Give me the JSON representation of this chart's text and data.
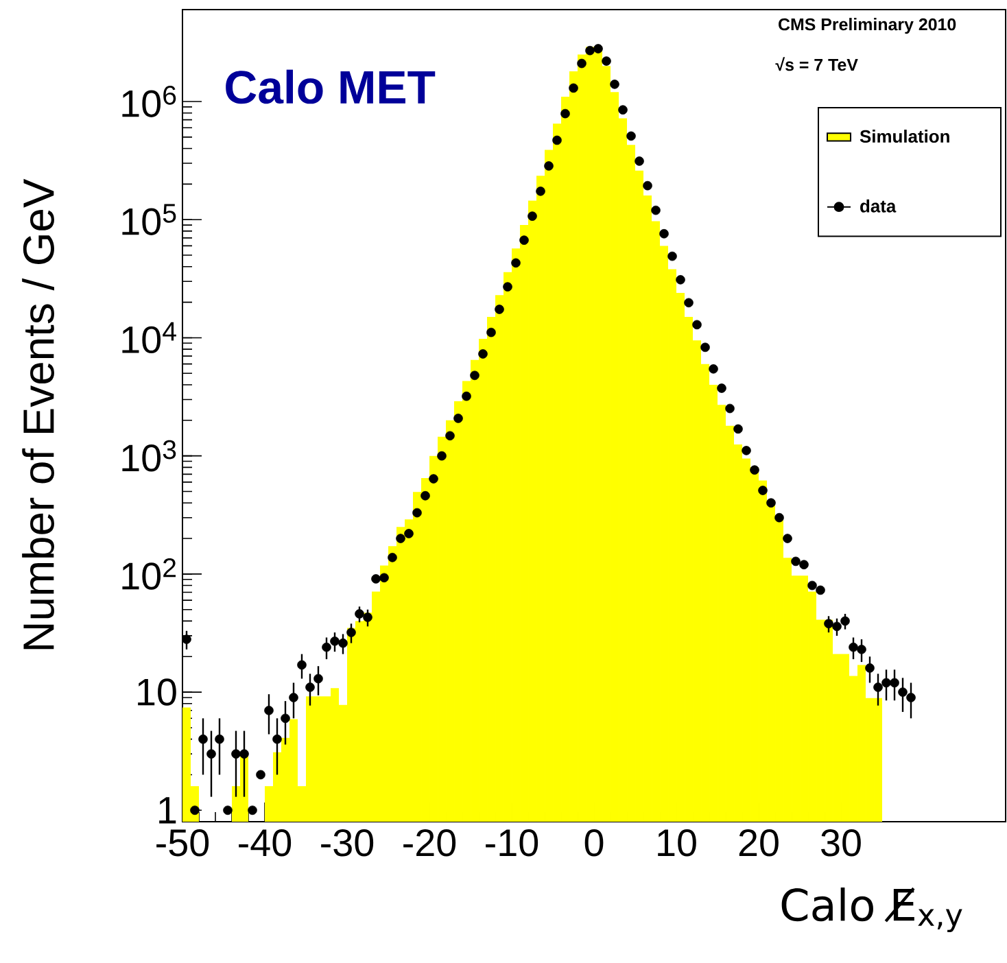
{
  "chart_data": {
    "type": "histogram",
    "annotations": [
      "Calo MET",
      "CMS Preliminary 2010",
      "√s = 7 TeV"
    ],
    "xlabel": "Calo E̸$_{x,y}$",
    "ylabel": "Number of Events / GeV",
    "xlim": [
      -50,
      50
    ],
    "xticks": [
      -50,
      -40,
      -30,
      -20,
      -10,
      0,
      10,
      20,
      30
    ],
    "ylim": [
      0.8,
      6000000
    ],
    "yticks": [
      1,
      10,
      {
        "value": 100,
        "label": "10$^{2}$"
      },
      {
        "value": 1000,
        "label": "10$^{3}$"
      },
      {
        "value": 10000,
        "label": "10$^{4}$"
      },
      {
        "value": 100000,
        "label": "10$^{5}$"
      },
      {
        "value": 1000000,
        "label": "10$^{6}$"
      }
    ],
    "log": "y",
    "legend": "top right",
    "marker": "circle",
    "series": [
      {
        "name": "Simulation",
        "color": "#ffff00",
        "bins": [
          -50,
          -49,
          -48,
          -47,
          -46,
          -45,
          -44,
          -43,
          -42,
          -41,
          -40,
          -39,
          -38,
          -37,
          -36,
          -35,
          -34,
          -33,
          -32,
          -31,
          -30,
          -29,
          -28,
          -27,
          -26,
          -25,
          -24,
          -23,
          -22,
          -21,
          -20,
          -19,
          -18,
          -17,
          -16,
          -15,
          -14,
          -13,
          -12,
          -11,
          -10,
          -9,
          -8,
          -7,
          -6,
          -5,
          -4,
          -3,
          -2,
          -1,
          0,
          1,
          2,
          3,
          4,
          5,
          6,
          7,
          8,
          9,
          10,
          11,
          12,
          13,
          14,
          15,
          16,
          17,
          18,
          19,
          20,
          21,
          22,
          23,
          24,
          25,
          26,
          27,
          28,
          29,
          30,
          31,
          32,
          33,
          34,
          35
        ],
        "values": [
          7.4,
          1.6,
          null,
          null,
          null,
          null,
          1.6,
          2.9,
          null,
          null,
          1.6,
          3.1,
          4.1,
          5.9,
          1.6,
          9.2,
          9.2,
          9.2,
          10.8,
          7.8,
          35,
          40,
          47,
          71,
          118,
          172,
          250,
          290,
          495,
          650,
          1000,
          1450,
          2000,
          2900,
          4300,
          6500,
          9800,
          15000,
          23000,
          36000,
          57000,
          90000,
          145000,
          235000,
          390000,
          650000,
          1100000,
          1800000,
          2500000,
          2900000,
          2900000,
          2000000,
          1200000,
          720000,
          430000,
          260000,
          160000,
          97000,
          60000,
          38000,
          24000,
          15000,
          9500,
          6000,
          4000,
          2700,
          1800,
          1250,
          950,
          800,
          620,
          420,
          290,
          137,
          97,
          97,
          71,
          41,
          41,
          21,
          21,
          13.7,
          17,
          8.9,
          8.9
        ]
      },
      {
        "name": "data",
        "type": "scatter",
        "color": "#000000",
        "x": [
          -49.5,
          -48.5,
          -47.5,
          -46.5,
          -45.5,
          -44.5,
          -43.5,
          -42.5,
          -41.5,
          -40.5,
          -39.5,
          -38.5,
          -37.5,
          -36.5,
          -35.5,
          -34.5,
          -33.5,
          -32.5,
          -31.5,
          -30.5,
          -29.5,
          -28.5,
          -27.5,
          -26.5,
          -25.5,
          -24.5,
          -23.5,
          -22.5,
          -21.5,
          -20.5,
          -19.5,
          -18.5,
          -17.5,
          -16.5,
          -15.5,
          -14.5,
          -13.5,
          -12.5,
          -11.5,
          -10.5,
          -9.5,
          -8.5,
          -7.5,
          -6.5,
          -5.5,
          -4.5,
          -3.5,
          -2.5,
          -1.5,
          -0.5,
          0.5,
          1.5,
          2.5,
          3.5,
          4.5,
          5.5,
          6.5,
          7.5,
          8.5,
          9.5,
          10.5,
          11.5,
          12.5,
          13.5,
          14.5,
          15.5,
          16.5,
          17.5,
          18.5,
          19.5,
          20.5,
          21.5,
          22.5,
          23.5,
          24.5,
          25.5,
          26.5,
          27.5,
          28.5,
          29.5,
          30.5,
          31.5,
          32.5,
          33.5,
          34.5,
          35.5,
          36.5,
          37.5,
          38.5
        ],
        "values": [
          28,
          1,
          4,
          3,
          4,
          1,
          3,
          3,
          1,
          2,
          7,
          4,
          6,
          9,
          17,
          11,
          13,
          24,
          27,
          26,
          32,
          46,
          43,
          91,
          93,
          138,
          200,
          220,
          330,
          460,
          640,
          1000,
          1480,
          2080,
          3200,
          4800,
          7300,
          11100,
          17400,
          27000,
          43000,
          67000,
          107000,
          174000,
          285000,
          470000,
          790000,
          1300000,
          2100000,
          2700000,
          2800000,
          2200000,
          1400000,
          850000,
          510000,
          313000,
          194000,
          120000,
          76000,
          49000,
          31000,
          19800,
          12900,
          8300,
          5450,
          3740,
          2520,
          1690,
          1110,
          760,
          510,
          400,
          300,
          200,
          128,
          120,
          80,
          73,
          38,
          36,
          40,
          24,
          23,
          16,
          11,
          12,
          12,
          10,
          9
        ],
        "errors": [
          5,
          null,
          2,
          1.7,
          2,
          null,
          1.7,
          1.7,
          null,
          null,
          2.6,
          2,
          2.4,
          3,
          4,
          3.3,
          3.6,
          5,
          5,
          5,
          6,
          7,
          7,
          null,
          null,
          null,
          null,
          null,
          null,
          null,
          null,
          null,
          null,
          null,
          null,
          null,
          null,
          null,
          null,
          null,
          null,
          null,
          null,
          null,
          null,
          null,
          null,
          null,
          null,
          null,
          null,
          null,
          null,
          null,
          null,
          null,
          null,
          null,
          null,
          null,
          null,
          null,
          null,
          null,
          null,
          null,
          null,
          null,
          null,
          null,
          null,
          null,
          null,
          null,
          null,
          null,
          null,
          null,
          6,
          6,
          6,
          5,
          5,
          4,
          3.3,
          3.5,
          3.5,
          3.2,
          3
        ]
      }
    ]
  }
}
